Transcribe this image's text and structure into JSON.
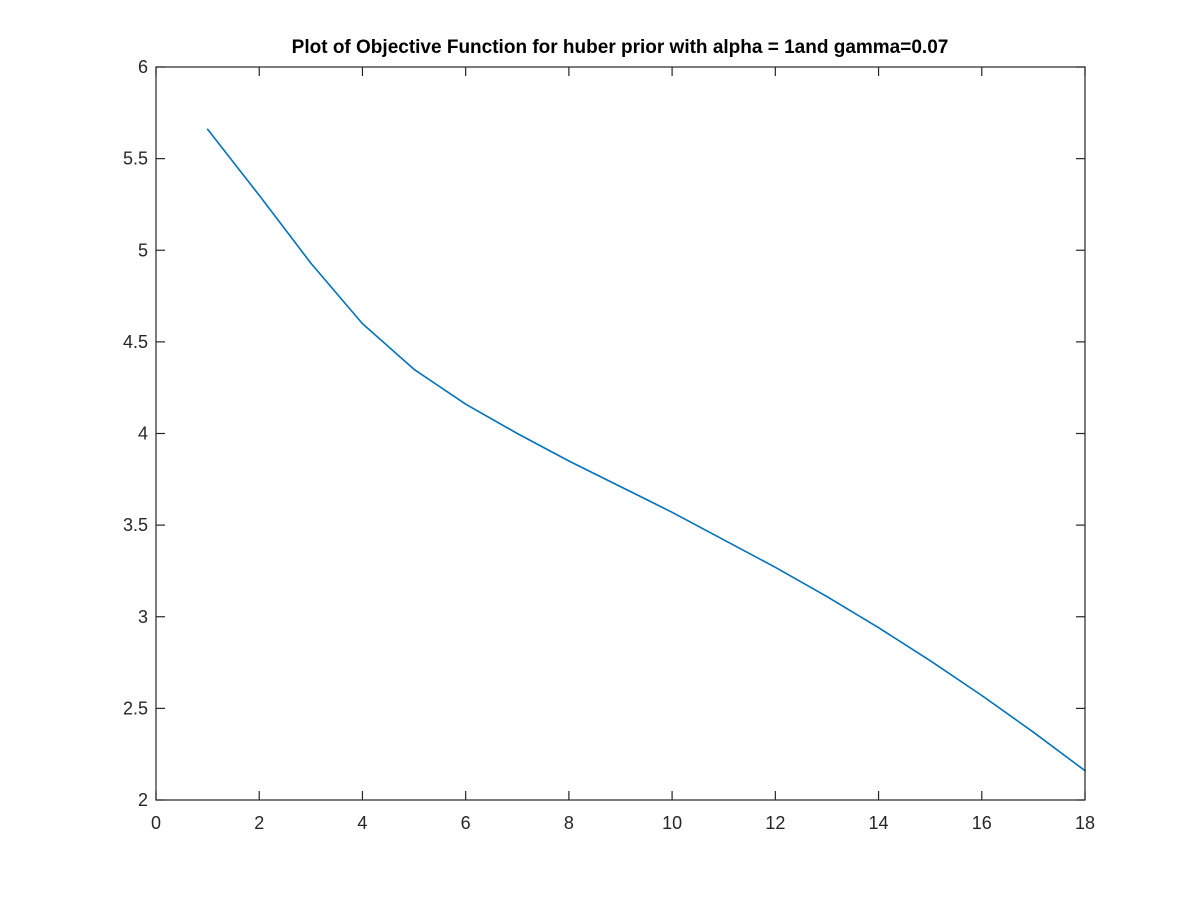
{
  "chart_data": {
    "type": "line",
    "title": "Plot of Objective Function for huber prior with alpha = 1and gamma=0.07",
    "xlabel": "",
    "ylabel": "",
    "xlim": [
      0,
      18
    ],
    "ylim": [
      2,
      6
    ],
    "xticks": [
      0,
      2,
      4,
      6,
      8,
      10,
      12,
      14,
      16,
      18
    ],
    "yticks": [
      2,
      2.5,
      3,
      3.5,
      4,
      4.5,
      5,
      5.5,
      6
    ],
    "grid": false,
    "box": true,
    "series": [
      {
        "color": "#0072bd",
        "x": [
          1,
          2,
          3,
          4,
          5,
          6,
          7,
          8,
          9,
          10,
          11,
          12,
          13,
          14,
          15,
          16,
          17,
          18
        ],
        "y": [
          5.66,
          5.3,
          4.93,
          4.6,
          4.35,
          4.16,
          4.0,
          3.85,
          3.71,
          3.57,
          3.42,
          3.27,
          3.11,
          2.94,
          2.76,
          2.57,
          2.37,
          2.16
        ]
      }
    ]
  }
}
